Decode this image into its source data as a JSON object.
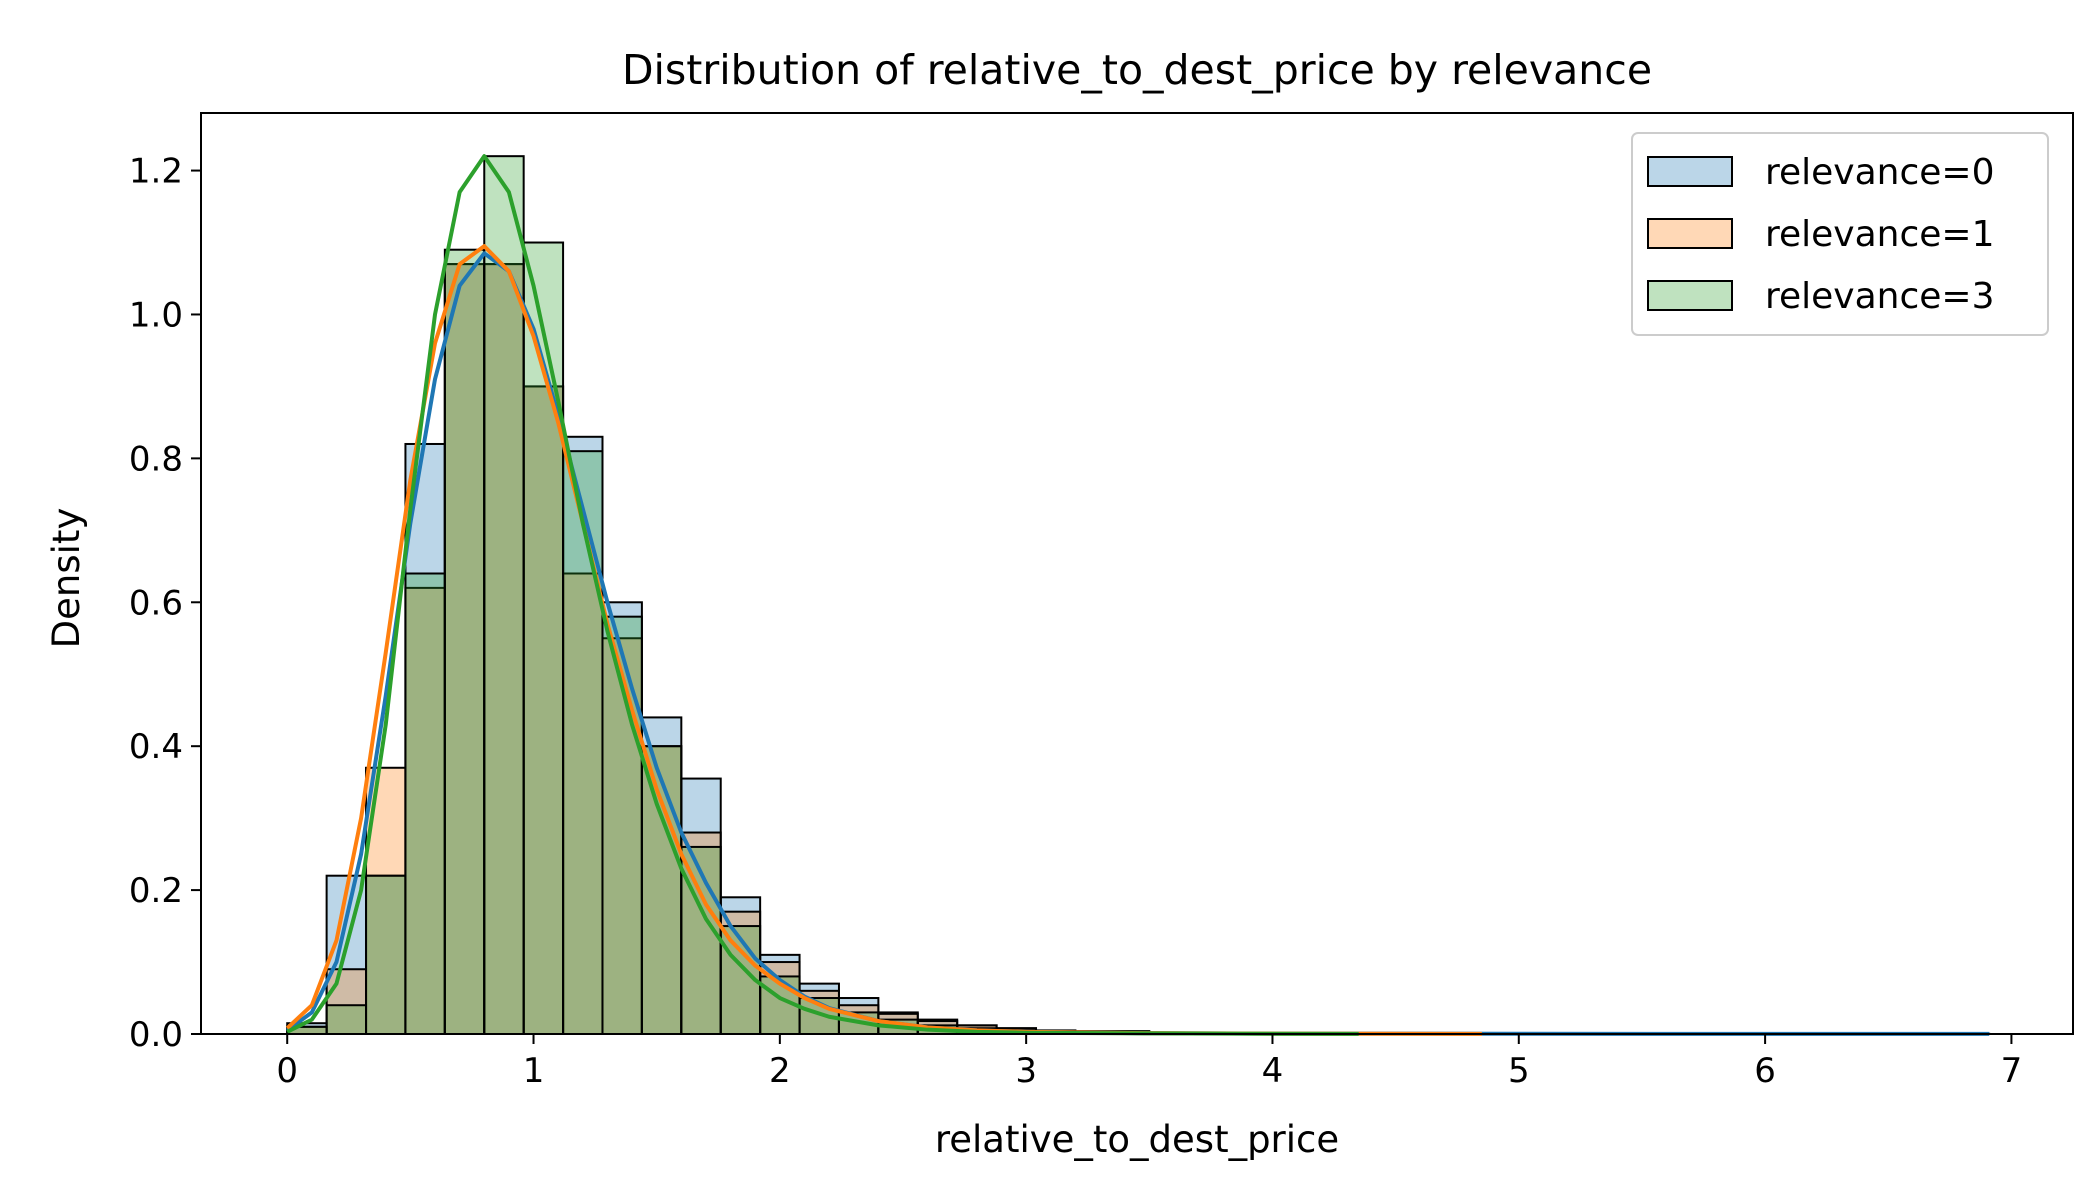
{
  "chart_data": {
    "type": "histogram",
    "title": "Distribution of relative_to_dest_price by relevance",
    "xlabel": "relative_to_dest_price",
    "ylabel": "Density",
    "xlim": [
      -0.35,
      7.25
    ],
    "ylim": [
      0,
      1.28
    ],
    "xticks": [
      0,
      1,
      2,
      3,
      4,
      5,
      6,
      7
    ],
    "yticks": [
      0.0,
      0.2,
      0.4,
      0.6,
      0.8,
      1.0,
      1.2
    ],
    "xtick_labels": [
      "0",
      "1",
      "2",
      "3",
      "4",
      "5",
      "6",
      "7"
    ],
    "ytick_labels": [
      "0.0",
      "0.2",
      "0.4",
      "0.6",
      "0.8",
      "1.0",
      "1.2"
    ],
    "grid": false,
    "legend_position": "top-right",
    "series": [
      {
        "name": "relevance=0",
        "color": "#1f77b4",
        "bins": [
          [
            0.0,
            0.16,
            0.015
          ],
          [
            0.16,
            0.32,
            0.22
          ],
          [
            0.32,
            0.48,
            0.22
          ],
          [
            0.48,
            0.64,
            0.82
          ],
          [
            0.64,
            0.8,
            1.07
          ],
          [
            0.8,
            0.96,
            1.07
          ],
          [
            0.96,
            1.12,
            0.9
          ],
          [
            1.12,
            1.28,
            0.83
          ],
          [
            1.28,
            1.44,
            0.6
          ],
          [
            1.44,
            1.6,
            0.44
          ],
          [
            1.6,
            1.76,
            0.355
          ],
          [
            1.76,
            1.92,
            0.19
          ],
          [
            1.92,
            2.08,
            0.11
          ],
          [
            2.08,
            2.24,
            0.07
          ],
          [
            2.24,
            2.4,
            0.05
          ],
          [
            2.4,
            2.56,
            0.03
          ],
          [
            2.56,
            2.72,
            0.02
          ],
          [
            2.72,
            2.88,
            0.012
          ],
          [
            2.88,
            3.04,
            0.008
          ],
          [
            3.04,
            3.2,
            0.005
          ],
          [
            3.2,
            3.5,
            0.003
          ],
          [
            3.5,
            4.0,
            0.0015
          ],
          [
            4.0,
            5.0,
            0.0008
          ],
          [
            5.0,
            6.91,
            0.0003
          ]
        ],
        "kde": [
          [
            0.0,
            0.005
          ],
          [
            0.1,
            0.03
          ],
          [
            0.2,
            0.1
          ],
          [
            0.3,
            0.25
          ],
          [
            0.4,
            0.47
          ],
          [
            0.5,
            0.71
          ],
          [
            0.6,
            0.91
          ],
          [
            0.7,
            1.04
          ],
          [
            0.8,
            1.085
          ],
          [
            0.9,
            1.06
          ],
          [
            1.0,
            0.98
          ],
          [
            1.1,
            0.86
          ],
          [
            1.2,
            0.73
          ],
          [
            1.3,
            0.6
          ],
          [
            1.4,
            0.48
          ],
          [
            1.5,
            0.37
          ],
          [
            1.6,
            0.28
          ],
          [
            1.7,
            0.21
          ],
          [
            1.8,
            0.15
          ],
          [
            1.9,
            0.105
          ],
          [
            2.0,
            0.075
          ],
          [
            2.1,
            0.052
          ],
          [
            2.2,
            0.036
          ],
          [
            2.4,
            0.018
          ],
          [
            2.6,
            0.009
          ],
          [
            2.8,
            0.005
          ],
          [
            3.0,
            0.003
          ],
          [
            3.5,
            0.001
          ],
          [
            4.0,
            0.0006
          ],
          [
            5.0,
            0.0003
          ],
          [
            6.0,
            0.0002
          ],
          [
            6.91,
            0.0001
          ]
        ]
      },
      {
        "name": "relevance=1",
        "color": "#ff7f0e",
        "bins": [
          [
            0.0,
            0.16,
            0.01
          ],
          [
            0.16,
            0.32,
            0.09
          ],
          [
            0.32,
            0.48,
            0.37
          ],
          [
            0.48,
            0.64,
            0.62
          ],
          [
            0.64,
            0.8,
            1.07
          ],
          [
            0.8,
            0.96,
            1.07
          ],
          [
            0.96,
            1.12,
            0.9
          ],
          [
            1.12,
            1.28,
            0.64
          ],
          [
            1.28,
            1.44,
            0.55
          ],
          [
            1.44,
            1.6,
            0.4
          ],
          [
            1.6,
            1.76,
            0.28
          ],
          [
            1.76,
            1.92,
            0.17
          ],
          [
            1.92,
            2.08,
            0.1
          ],
          [
            2.08,
            2.24,
            0.06
          ],
          [
            2.24,
            2.4,
            0.04
          ],
          [
            2.4,
            2.56,
            0.028
          ],
          [
            2.56,
            2.72,
            0.018
          ],
          [
            2.72,
            2.88,
            0.012
          ],
          [
            2.88,
            3.04,
            0.008
          ],
          [
            3.04,
            3.5,
            0.004
          ],
          [
            3.5,
            4.0,
            0.0015
          ],
          [
            4.0,
            4.85,
            0.0006
          ]
        ],
        "kde": [
          [
            0.0,
            0.008
          ],
          [
            0.1,
            0.04
          ],
          [
            0.2,
            0.13
          ],
          [
            0.3,
            0.3
          ],
          [
            0.4,
            0.53
          ],
          [
            0.5,
            0.77
          ],
          [
            0.6,
            0.96
          ],
          [
            0.7,
            1.07
          ],
          [
            0.8,
            1.095
          ],
          [
            0.9,
            1.06
          ],
          [
            1.0,
            0.97
          ],
          [
            1.1,
            0.85
          ],
          [
            1.2,
            0.71
          ],
          [
            1.3,
            0.57
          ],
          [
            1.4,
            0.45
          ],
          [
            1.5,
            0.34
          ],
          [
            1.6,
            0.25
          ],
          [
            1.7,
            0.18
          ],
          [
            1.8,
            0.13
          ],
          [
            1.9,
            0.095
          ],
          [
            2.0,
            0.07
          ],
          [
            2.1,
            0.05
          ],
          [
            2.2,
            0.035
          ],
          [
            2.4,
            0.018
          ],
          [
            2.6,
            0.009
          ],
          [
            2.8,
            0.005
          ],
          [
            3.0,
            0.003
          ],
          [
            3.5,
            0.0012
          ],
          [
            4.0,
            0.0006
          ],
          [
            4.85,
            0.0002
          ]
        ]
      },
      {
        "name": "relevance=3",
        "color": "#2ca02c",
        "bins": [
          [
            0.0,
            0.16,
            0.01
          ],
          [
            0.16,
            0.32,
            0.04
          ],
          [
            0.32,
            0.48,
            0.22
          ],
          [
            0.48,
            0.64,
            0.64
          ],
          [
            0.64,
            0.8,
            1.09
          ],
          [
            0.8,
            0.96,
            1.22
          ],
          [
            0.96,
            1.12,
            1.1
          ],
          [
            1.12,
            1.28,
            0.81
          ],
          [
            1.28,
            1.44,
            0.58
          ],
          [
            1.44,
            1.6,
            0.4
          ],
          [
            1.6,
            1.76,
            0.26
          ],
          [
            1.76,
            1.92,
            0.15
          ],
          [
            1.92,
            2.08,
            0.08
          ],
          [
            2.08,
            2.24,
            0.05
          ],
          [
            2.24,
            2.4,
            0.03
          ],
          [
            2.4,
            2.56,
            0.02
          ],
          [
            2.56,
            2.72,
            0.012
          ],
          [
            2.72,
            2.88,
            0.008
          ],
          [
            2.88,
            3.04,
            0.005
          ],
          [
            3.04,
            3.5,
            0.002
          ],
          [
            3.5,
            4.35,
            0.0007
          ]
        ],
        "kde": [
          [
            0.0,
            0.003
          ],
          [
            0.1,
            0.02
          ],
          [
            0.2,
            0.07
          ],
          [
            0.3,
            0.2
          ],
          [
            0.4,
            0.43
          ],
          [
            0.5,
            0.73
          ],
          [
            0.6,
            1.0
          ],
          [
            0.7,
            1.17
          ],
          [
            0.8,
            1.22
          ],
          [
            0.9,
            1.17
          ],
          [
            1.0,
            1.04
          ],
          [
            1.1,
            0.88
          ],
          [
            1.2,
            0.71
          ],
          [
            1.3,
            0.56
          ],
          [
            1.4,
            0.43
          ],
          [
            1.5,
            0.32
          ],
          [
            1.6,
            0.23
          ],
          [
            1.7,
            0.16
          ],
          [
            1.8,
            0.11
          ],
          [
            1.9,
            0.075
          ],
          [
            2.0,
            0.05
          ],
          [
            2.1,
            0.035
          ],
          [
            2.2,
            0.024
          ],
          [
            2.4,
            0.012
          ],
          [
            2.6,
            0.006
          ],
          [
            2.8,
            0.003
          ],
          [
            3.0,
            0.0018
          ],
          [
            3.5,
            0.0008
          ],
          [
            4.0,
            0.0004
          ],
          [
            4.35,
            0.0002
          ]
        ]
      }
    ]
  }
}
